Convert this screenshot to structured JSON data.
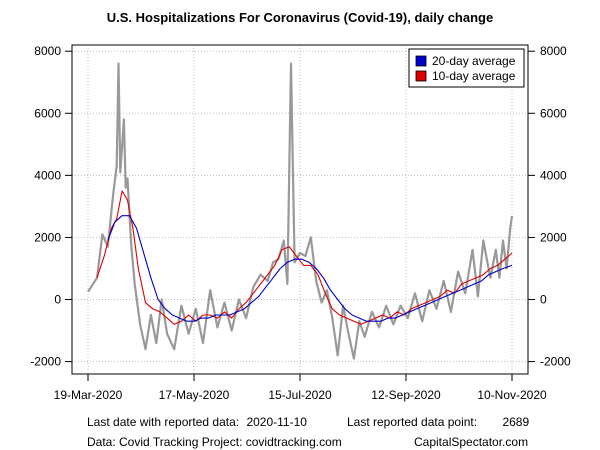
{
  "chart_data": {
    "type": "line",
    "title": "U.S. Hospitalizations For Coronavirus (Covid-19), daily change",
    "xlabel": "",
    "ylabel": "",
    "start_date": "2020-03-19",
    "end_date": "2020-11-10",
    "x_tick_labels": [
      "19-Mar-2020",
      "17-May-2020",
      "15-Jul-2020",
      "12-Sep-2020",
      "10-Nov-2020"
    ],
    "x_ticks": [
      "2020-03-19",
      "2020-05-17",
      "2020-07-15",
      "2020-09-12",
      "2020-11-10"
    ],
    "y_ticks": [
      -2000,
      0,
      2000,
      4000,
      6000,
      8000
    ],
    "y_tick_labels": [
      "-2000",
      "0",
      "2000",
      "4000",
      "6000",
      "8000"
    ],
    "ylim": [
      -2400,
      8200
    ],
    "grid": true,
    "legend_position": "top-right",
    "series": [
      {
        "name": "daily change",
        "color": "#999999",
        "points": [
          [
            "2020-03-19",
            250
          ],
          [
            "2020-03-24",
            700
          ],
          [
            "2020-03-27",
            2100
          ],
          [
            "2020-03-30",
            1700
          ],
          [
            "2020-04-02",
            3400
          ],
          [
            "2020-04-04",
            4300
          ],
          [
            "2020-04-05",
            7600
          ],
          [
            "2020-04-06",
            4100
          ],
          [
            "2020-04-08",
            5800
          ],
          [
            "2020-04-09",
            3600
          ],
          [
            "2020-04-10",
            3900
          ],
          [
            "2020-04-12",
            1800
          ],
          [
            "2020-04-14",
            500
          ],
          [
            "2020-04-17",
            -800
          ],
          [
            "2020-04-20",
            -1600
          ],
          [
            "2020-04-23",
            -500
          ],
          [
            "2020-04-26",
            -1400
          ],
          [
            "2020-04-29",
            0
          ],
          [
            "2020-05-02",
            -1100
          ],
          [
            "2020-05-06",
            -1600
          ],
          [
            "2020-05-10",
            -200
          ],
          [
            "2020-05-14",
            -1100
          ],
          [
            "2020-05-18",
            -300
          ],
          [
            "2020-05-22",
            -1400
          ],
          [
            "2020-05-26",
            300
          ],
          [
            "2020-05-30",
            -900
          ],
          [
            "2020-06-03",
            -100
          ],
          [
            "2020-06-07",
            -1000
          ],
          [
            "2020-06-11",
            0
          ],
          [
            "2020-06-15",
            -600
          ],
          [
            "2020-06-19",
            400
          ],
          [
            "2020-06-23",
            800
          ],
          [
            "2020-06-27",
            600
          ],
          [
            "2020-06-30",
            1200
          ],
          [
            "2020-07-03",
            1300
          ],
          [
            "2020-07-06",
            1900
          ],
          [
            "2020-07-08",
            500
          ],
          [
            "2020-07-10",
            7600
          ],
          [
            "2020-07-12",
            1200
          ],
          [
            "2020-07-15",
            1500
          ],
          [
            "2020-07-18",
            1400
          ],
          [
            "2020-07-21",
            2000
          ],
          [
            "2020-07-24",
            600
          ],
          [
            "2020-07-27",
            -100
          ],
          [
            "2020-07-30",
            300
          ],
          [
            "2020-08-02",
            -600
          ],
          [
            "2020-08-05",
            -1800
          ],
          [
            "2020-08-08",
            -200
          ],
          [
            "2020-08-11",
            -1100
          ],
          [
            "2020-08-14",
            -1900
          ],
          [
            "2020-08-17",
            -700
          ],
          [
            "2020-08-20",
            -1200
          ],
          [
            "2020-08-24",
            -400
          ],
          [
            "2020-08-28",
            -900
          ],
          [
            "2020-09-01",
            -200
          ],
          [
            "2020-09-05",
            -800
          ],
          [
            "2020-09-09",
            -200
          ],
          [
            "2020-09-13",
            -600
          ],
          [
            "2020-09-17",
            200
          ],
          [
            "2020-09-21",
            -700
          ],
          [
            "2020-09-25",
            300
          ],
          [
            "2020-09-29",
            -300
          ],
          [
            "2020-10-03",
            600
          ],
          [
            "2020-10-07",
            -400
          ],
          [
            "2020-10-11",
            900
          ],
          [
            "2020-10-15",
            200
          ],
          [
            "2020-10-19",
            1600
          ],
          [
            "2020-10-22",
            100
          ],
          [
            "2020-10-25",
            1900
          ],
          [
            "2020-10-27",
            1300
          ],
          [
            "2020-10-29",
            700
          ],
          [
            "2020-11-01",
            1600
          ],
          [
            "2020-11-03",
            700
          ],
          [
            "2020-11-05",
            1900
          ],
          [
            "2020-11-07",
            1000
          ],
          [
            "2020-11-09",
            2300
          ],
          [
            "2020-11-10",
            2689
          ]
        ]
      },
      {
        "name": "10-day average",
        "color": "#dd0000",
        "points": [
          [
            "2020-03-24",
            700
          ],
          [
            "2020-03-28",
            1400
          ],
          [
            "2020-04-01",
            2300
          ],
          [
            "2020-04-04",
            2600
          ],
          [
            "2020-04-07",
            3500
          ],
          [
            "2020-04-10",
            3200
          ],
          [
            "2020-04-13",
            2300
          ],
          [
            "2020-04-16",
            1000
          ],
          [
            "2020-04-20",
            -100
          ],
          [
            "2020-04-24",
            -300
          ],
          [
            "2020-04-28",
            -400
          ],
          [
            "2020-05-02",
            -600
          ],
          [
            "2020-05-06",
            -800
          ],
          [
            "2020-05-10",
            -700
          ],
          [
            "2020-05-14",
            -500
          ],
          [
            "2020-05-18",
            -700
          ],
          [
            "2020-05-22",
            -500
          ],
          [
            "2020-05-26",
            -500
          ],
          [
            "2020-05-30",
            -600
          ],
          [
            "2020-06-03",
            -400
          ],
          [
            "2020-06-07",
            -600
          ],
          [
            "2020-06-11",
            -300
          ],
          [
            "2020-06-15",
            -100
          ],
          [
            "2020-06-19",
            200
          ],
          [
            "2020-06-23",
            500
          ],
          [
            "2020-06-27",
            800
          ],
          [
            "2020-07-01",
            1100
          ],
          [
            "2020-07-05",
            1600
          ],
          [
            "2020-07-09",
            1700
          ],
          [
            "2020-07-13",
            1400
          ],
          [
            "2020-07-17",
            1100
          ],
          [
            "2020-07-21",
            1100
          ],
          [
            "2020-07-25",
            800
          ],
          [
            "2020-07-29",
            200
          ],
          [
            "2020-08-02",
            -300
          ],
          [
            "2020-08-06",
            -500
          ],
          [
            "2020-08-10",
            -600
          ],
          [
            "2020-08-14",
            -700
          ],
          [
            "2020-08-18",
            -800
          ],
          [
            "2020-08-22",
            -700
          ],
          [
            "2020-08-26",
            -600
          ],
          [
            "2020-08-30",
            -500
          ],
          [
            "2020-09-03",
            -600
          ],
          [
            "2020-09-07",
            -400
          ],
          [
            "2020-09-11",
            -500
          ],
          [
            "2020-09-15",
            -300
          ],
          [
            "2020-09-19",
            -200
          ],
          [
            "2020-09-23",
            -100
          ],
          [
            "2020-09-27",
            0
          ],
          [
            "2020-10-01",
            100
          ],
          [
            "2020-10-05",
            300
          ],
          [
            "2020-10-09",
            200
          ],
          [
            "2020-10-13",
            500
          ],
          [
            "2020-10-17",
            600
          ],
          [
            "2020-10-21",
            700
          ],
          [
            "2020-10-25",
            800
          ],
          [
            "2020-10-29",
            1000
          ],
          [
            "2020-11-02",
            1100
          ],
          [
            "2020-11-06",
            1300
          ],
          [
            "2020-11-10",
            1500
          ]
        ]
      },
      {
        "name": "20-day average",
        "color": "#0000cc",
        "points": [
          [
            "2020-03-30",
            1900
          ],
          [
            "2020-04-03",
            2500
          ],
          [
            "2020-04-07",
            2700
          ],
          [
            "2020-04-11",
            2700
          ],
          [
            "2020-04-15",
            2300
          ],
          [
            "2020-04-19",
            1500
          ],
          [
            "2020-04-23",
            700
          ],
          [
            "2020-04-27",
            0
          ],
          [
            "2020-05-01",
            -300
          ],
          [
            "2020-05-05",
            -500
          ],
          [
            "2020-05-09",
            -600
          ],
          [
            "2020-05-13",
            -700
          ],
          [
            "2020-05-17",
            -700
          ],
          [
            "2020-05-21",
            -600
          ],
          [
            "2020-05-25",
            -600
          ],
          [
            "2020-05-29",
            -500
          ],
          [
            "2020-06-02",
            -500
          ],
          [
            "2020-06-06",
            -500
          ],
          [
            "2020-06-10",
            -400
          ],
          [
            "2020-06-14",
            -300
          ],
          [
            "2020-06-18",
            -100
          ],
          [
            "2020-06-22",
            100
          ],
          [
            "2020-06-26",
            400
          ],
          [
            "2020-06-30",
            700
          ],
          [
            "2020-07-04",
            1000
          ],
          [
            "2020-07-08",
            1200
          ],
          [
            "2020-07-12",
            1300
          ],
          [
            "2020-07-16",
            1300
          ],
          [
            "2020-07-20",
            1200
          ],
          [
            "2020-07-24",
            1000
          ],
          [
            "2020-07-28",
            700
          ],
          [
            "2020-08-01",
            300
          ],
          [
            "2020-08-05",
            0
          ],
          [
            "2020-08-09",
            -300
          ],
          [
            "2020-08-13",
            -500
          ],
          [
            "2020-08-17",
            -600
          ],
          [
            "2020-08-21",
            -700
          ],
          [
            "2020-08-25",
            -700
          ],
          [
            "2020-08-29",
            -700
          ],
          [
            "2020-09-02",
            -600
          ],
          [
            "2020-09-06",
            -600
          ],
          [
            "2020-09-10",
            -500
          ],
          [
            "2020-09-14",
            -400
          ],
          [
            "2020-09-18",
            -300
          ],
          [
            "2020-09-22",
            -200
          ],
          [
            "2020-09-26",
            -100
          ],
          [
            "2020-09-30",
            0
          ],
          [
            "2020-10-04",
            100
          ],
          [
            "2020-10-08",
            200
          ],
          [
            "2020-10-12",
            300
          ],
          [
            "2020-10-16",
            400
          ],
          [
            "2020-10-20",
            500
          ],
          [
            "2020-10-24",
            600
          ],
          [
            "2020-10-28",
            800
          ],
          [
            "2020-11-01",
            900
          ],
          [
            "2020-11-05",
            1000
          ],
          [
            "2020-11-10",
            1100
          ]
        ]
      }
    ],
    "legend": [
      {
        "label": "20-day average",
        "color": "#0000cc"
      },
      {
        "label": "10-day average",
        "color": "#dd0000"
      }
    ]
  },
  "footer": {
    "last_date_label": "Last date with reported data:",
    "last_date_value": "2020-11-10",
    "last_point_label": "Last reported data point:",
    "last_point_value": "2689",
    "source": "Data: Covid Tracking Project: covidtracking.com",
    "brand": "CapitalSpectator.com"
  }
}
